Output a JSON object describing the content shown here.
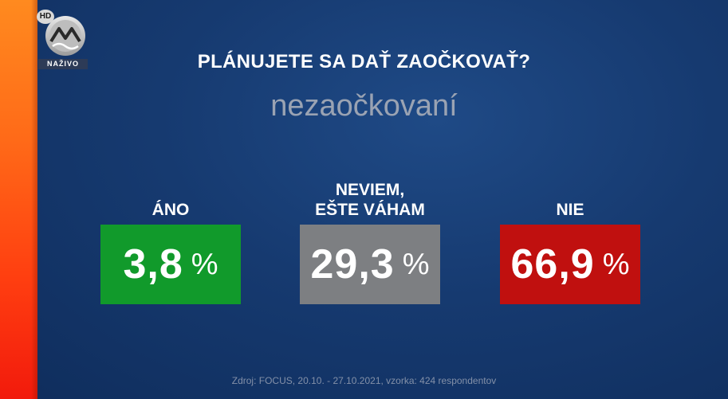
{
  "channel": {
    "hd_badge": "HD",
    "live_label": "NAŽIVO",
    "logo_icon": "markiza-m-icon"
  },
  "question": "PLÁNUJETE SA DAŤ ZAOČKOVAŤ?",
  "subtitle": "nezaočkovaní",
  "results": [
    {
      "label_line1": "ÁNO",
      "label_line2": "",
      "value": "3,8",
      "unit": "%",
      "color": "#119a2b"
    },
    {
      "label_line1": "NEVIEM,",
      "label_line2": "EŠTE VÁHAM",
      "value": "29,3",
      "unit": "%",
      "color": "#7d7f82"
    },
    {
      "label_line1": "NIE",
      "label_line2": "",
      "value": "66,9",
      "unit": "%",
      "color": "#c0100f"
    }
  ],
  "source": "Zdroj: FOCUS, 20.10. - 27.10.2021, vzorka: 424 respondentov",
  "colors": {
    "background": "#163a70",
    "side_strip": "#ff5a14"
  }
}
